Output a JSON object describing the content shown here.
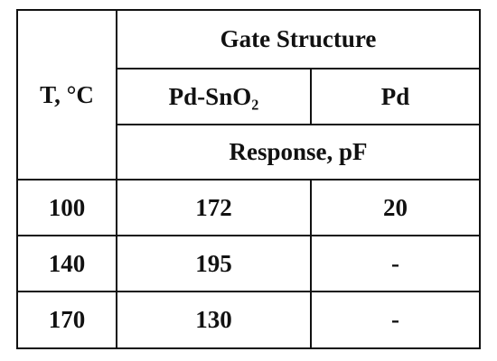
{
  "table": {
    "header": {
      "first_column": "T, °C",
      "group": "Gate Structure",
      "columns": [
        "Pd-SnO₂",
        "Pd"
      ],
      "unit": "Response, pF"
    },
    "rows": [
      [
        100,
        172,
        20
      ],
      [
        140,
        195,
        "-"
      ],
      [
        170,
        130,
        "-"
      ]
    ]
  }
}
